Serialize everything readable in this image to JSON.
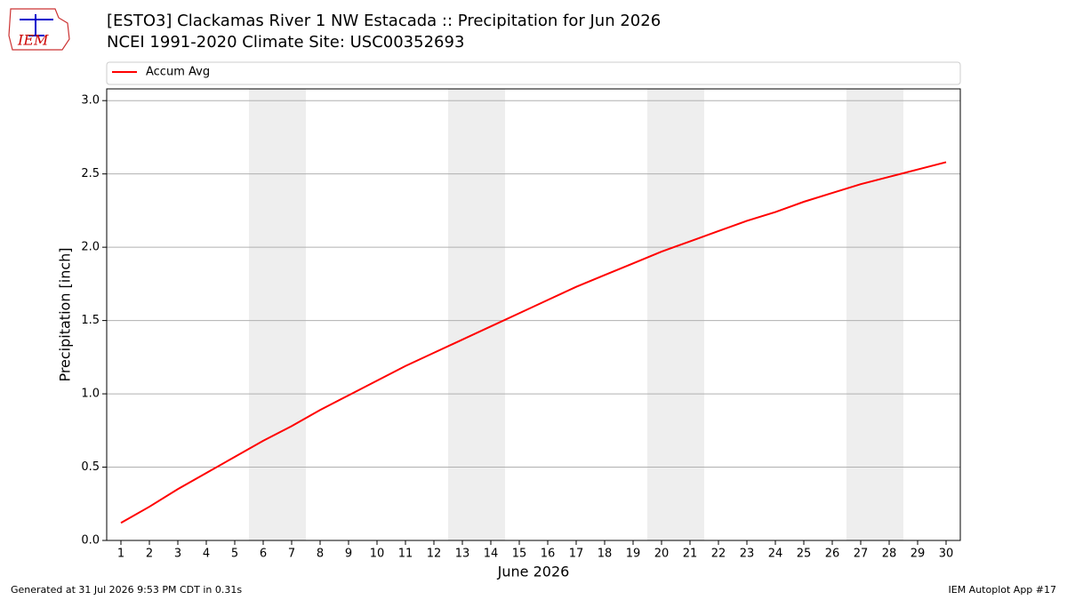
{
  "chart_data": {
    "type": "line",
    "title": "[ESTO3] Clackamas River 1 NW Estacada :: Precipitation for Jun 2026",
    "subtitle": "NCEI 1991-2020 Climate Site: USC00352693",
    "x_label": "June 2026",
    "y_label": "Precipitation [inch]",
    "x": [
      1,
      2,
      3,
      4,
      5,
      6,
      7,
      8,
      9,
      10,
      11,
      12,
      13,
      14,
      15,
      16,
      17,
      18,
      19,
      20,
      21,
      22,
      23,
      24,
      25,
      26,
      27,
      28,
      29,
      30
    ],
    "series": [
      {
        "name": "Accum Avg",
        "color": "#ff0000",
        "values": [
          0.12,
          0.23,
          0.35,
          0.46,
          0.57,
          0.68,
          0.78,
          0.89,
          0.99,
          1.09,
          1.19,
          1.28,
          1.37,
          1.46,
          1.55,
          1.64,
          1.73,
          1.81,
          1.89,
          1.97,
          2.04,
          2.11,
          2.18,
          2.24,
          2.31,
          2.37,
          2.43,
          2.48,
          2.53,
          2.58
        ]
      }
    ],
    "xlim": [
      0.5,
      30.5
    ],
    "ylim": [
      0,
      3.08
    ],
    "xticks": [
      1,
      2,
      3,
      4,
      5,
      6,
      7,
      8,
      9,
      10,
      11,
      12,
      13,
      14,
      15,
      16,
      17,
      18,
      19,
      20,
      21,
      22,
      23,
      24,
      25,
      26,
      27,
      28,
      29,
      30
    ],
    "yticks": [
      {
        "value": 0,
        "label": "0.0"
      },
      {
        "value": 0.5,
        "label": "0.5"
      },
      {
        "value": 1,
        "label": "1.0"
      },
      {
        "value": 1.5,
        "label": "1.5"
      },
      {
        "value": 2,
        "label": "2.0"
      },
      {
        "value": 2.5,
        "label": "2.5"
      },
      {
        "value": 3,
        "label": "3.0"
      }
    ],
    "grid": true,
    "legend": "top",
    "weekend_spans": [
      [
        5.5,
        7.5
      ],
      [
        12.5,
        14.5
      ],
      [
        19.5,
        21.5
      ],
      [
        26.5,
        28.5
      ]
    ],
    "span_color": "#eeeeee"
  },
  "logo": "IEM",
  "footer": {
    "left": "Generated at 31 Jul 2026 9:53 PM CDT in 0.31s",
    "right": "IEM Autoplot App #17"
  }
}
